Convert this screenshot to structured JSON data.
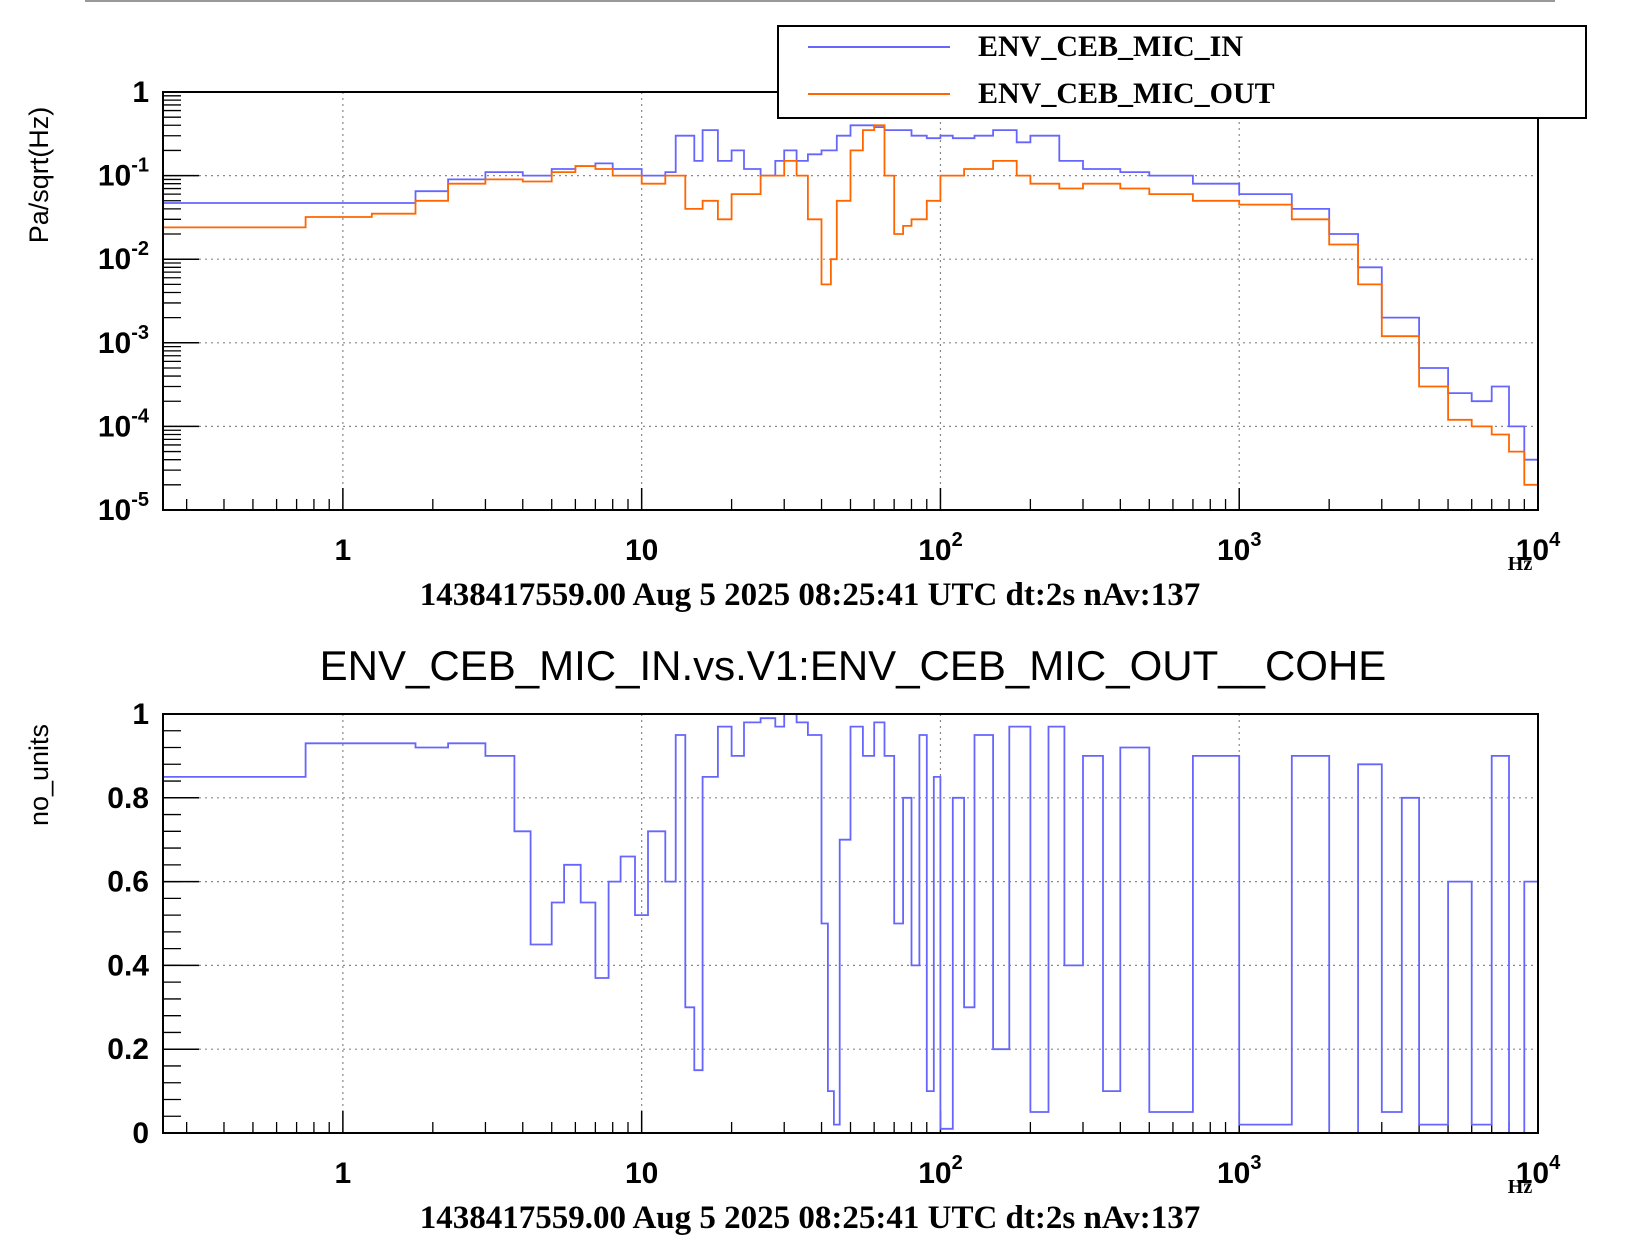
{
  "colors": {
    "in": "#6666ff",
    "out": "#ff6600",
    "grid": "#888888",
    "frame": "#000000"
  },
  "chart_data": [
    {
      "type": "line",
      "title": "",
      "xlabel": "1438417559.00 Aug 5 2025 08:25:41 UTC dt:2s nAv:137",
      "ylabel": "Pa/sqrt(Hz)",
      "x_unit": "Hz",
      "x_scale": "log",
      "y_scale": "log",
      "xlim": [
        0.25,
        10000
      ],
      "ylim": [
        1e-05,
        1
      ],
      "x_tick_labels": [
        {
          "value": 1,
          "base": "1",
          "exp": ""
        },
        {
          "value": 10,
          "base": "10",
          "exp": ""
        },
        {
          "value": 100,
          "base": "10",
          "exp": "2"
        },
        {
          "value": 1000,
          "base": "10",
          "exp": "3"
        },
        {
          "value": 10000,
          "base": "10",
          "exp": "4"
        }
      ],
      "y_tick_labels": [
        {
          "value": 1,
          "base": "1",
          "exp": ""
        },
        {
          "value": 0.1,
          "base": "10",
          "exp": "-1"
        },
        {
          "value": 0.01,
          "base": "10",
          "exp": "-2"
        },
        {
          "value": 0.001,
          "base": "10",
          "exp": "-3"
        },
        {
          "value": 0.0001,
          "base": "10",
          "exp": "-4"
        },
        {
          "value": 1e-05,
          "base": "10",
          "exp": "-5"
        }
      ],
      "grid": true,
      "legend_position": "top-right",
      "series": [
        {
          "name": "ENV_CEB_MIC_IN",
          "color": "#6666ff",
          "x": [
            0.25,
            0.75,
            1.75,
            2.25,
            3,
            4,
            5,
            6,
            7,
            8,
            10,
            12,
            13,
            15,
            16,
            18,
            20,
            22,
            25,
            28,
            30,
            33,
            36,
            40,
            45,
            50,
            55,
            60,
            65,
            70,
            80,
            90,
            100,
            110,
            130,
            150,
            180,
            200,
            250,
            300,
            400,
            500,
            700,
            1000,
            1500,
            2000,
            2500,
            3000,
            4000,
            5000,
            6000,
            7000,
            8000,
            9000,
            10000
          ],
          "y": [
            0.047,
            0.047,
            0.065,
            0.09,
            0.11,
            0.1,
            0.12,
            0.13,
            0.14,
            0.12,
            0.1,
            0.11,
            0.3,
            0.15,
            0.35,
            0.15,
            0.2,
            0.12,
            0.1,
            0.15,
            0.2,
            0.15,
            0.18,
            0.2,
            0.3,
            0.4,
            0.4,
            0.38,
            0.35,
            0.35,
            0.3,
            0.28,
            0.3,
            0.28,
            0.3,
            0.35,
            0.25,
            0.3,
            0.15,
            0.12,
            0.11,
            0.1,
            0.08,
            0.06,
            0.04,
            0.02,
            0.008,
            0.002,
            0.0005,
            0.00025,
            0.0002,
            0.0003,
            0.0001,
            4e-05,
            1.5e-05
          ]
        },
        {
          "name": "ENV_CEB_MIC_OUT",
          "color": "#ff6600",
          "x": [
            0.25,
            0.5,
            0.75,
            1.25,
            1.75,
            2.25,
            3,
            4,
            5,
            6,
            7,
            8,
            10,
            12,
            14,
            16,
            18,
            20,
            25,
            30,
            33,
            36,
            40,
            43,
            45,
            50,
            55,
            60,
            65,
            70,
            75,
            80,
            90,
            100,
            120,
            150,
            180,
            200,
            250,
            300,
            400,
            500,
            700,
            1000,
            1500,
            2000,
            2500,
            3000,
            4000,
            5000,
            6000,
            7000,
            8000,
            9000,
            10000
          ],
          "y": [
            0.024,
            0.024,
            0.032,
            0.035,
            0.05,
            0.08,
            0.09,
            0.085,
            0.11,
            0.13,
            0.12,
            0.1,
            0.08,
            0.1,
            0.04,
            0.05,
            0.03,
            0.06,
            0.1,
            0.15,
            0.1,
            0.03,
            0.005,
            0.01,
            0.05,
            0.2,
            0.35,
            0.4,
            0.1,
            0.02,
            0.025,
            0.03,
            0.05,
            0.1,
            0.12,
            0.15,
            0.1,
            0.08,
            0.07,
            0.08,
            0.07,
            0.06,
            0.05,
            0.045,
            0.03,
            0.015,
            0.005,
            0.0012,
            0.0003,
            0.00012,
            0.0001,
            8e-05,
            5e-05,
            2e-05,
            1e-05
          ]
        }
      ]
    },
    {
      "type": "line",
      "title": "ENV_CEB_MIC_IN.vs.V1:ENV_CEB_MIC_OUT__COHE",
      "xlabel": "1438417559.00 Aug 5 2025 08:25:41 UTC dt:2s nAv:137",
      "ylabel": "no_units",
      "x_unit": "Hz",
      "x_scale": "log",
      "y_scale": "linear",
      "xlim": [
        0.25,
        10000
      ],
      "ylim": [
        0,
        1
      ],
      "x_tick_labels": [
        {
          "value": 1,
          "base": "1",
          "exp": ""
        },
        {
          "value": 10,
          "base": "10",
          "exp": ""
        },
        {
          "value": 100,
          "base": "10",
          "exp": "2"
        },
        {
          "value": 1000,
          "base": "10",
          "exp": "3"
        },
        {
          "value": 10000,
          "base": "10",
          "exp": "4"
        }
      ],
      "y_tick_labels": [
        {
          "value": 1,
          "label": "1"
        },
        {
          "value": 0.8,
          "label": "0.8"
        },
        {
          "value": 0.6,
          "label": "0.6"
        },
        {
          "value": 0.4,
          "label": "0.4"
        },
        {
          "value": 0.2,
          "label": "0.2"
        },
        {
          "value": 0,
          "label": "0"
        }
      ],
      "grid": true,
      "series": [
        {
          "color": "#6666ff",
          "x": [
            0.25,
            0.75,
            1.25,
            1.75,
            2.25,
            3,
            3.75,
            4.25,
            5,
            5.5,
            6.25,
            7,
            7.75,
            8.5,
            9.5,
            10.5,
            12,
            13,
            14,
            15,
            16,
            18,
            20,
            22,
            25,
            28,
            30,
            33,
            36,
            40,
            42,
            44,
            46,
            50,
            55,
            60,
            65,
            70,
            75,
            80,
            85,
            90,
            95,
            100,
            110,
            120,
            130,
            150,
            170,
            200,
            230,
            260,
            300,
            350,
            400,
            500,
            700,
            1000,
            1500,
            2000,
            2500,
            3000,
            3500,
            4000,
            5000,
            6000,
            7000,
            8000,
            9000,
            10000
          ],
          "y": [
            0.85,
            0.93,
            0.93,
            0.92,
            0.93,
            0.9,
            0.72,
            0.45,
            0.55,
            0.64,
            0.55,
            0.37,
            0.6,
            0.66,
            0.52,
            0.72,
            0.6,
            0.95,
            0.3,
            0.15,
            0.85,
            0.97,
            0.9,
            0.98,
            0.99,
            0.97,
            1,
            0.98,
            0.95,
            0.5,
            0.1,
            0.02,
            0.7,
            0.97,
            0.9,
            0.98,
            0.9,
            0.5,
            0.8,
            0.4,
            0.95,
            0.1,
            0.85,
            0.01,
            0.8,
            0.3,
            0.95,
            0.2,
            0.97,
            0.05,
            0.97,
            0.4,
            0.9,
            0.1,
            0.92,
            0.05,
            0.9,
            0.02,
            0.9,
            0.0,
            0.88,
            0.05,
            0.8,
            0.02,
            0.6,
            0.02,
            0.9,
            0.0,
            0.6,
            0.45
          ]
        }
      ]
    }
  ],
  "legend": {
    "items": [
      {
        "label": "ENV_CEB_MIC_IN"
      },
      {
        "label": "ENV_CEB_MIC_OUT"
      }
    ]
  }
}
